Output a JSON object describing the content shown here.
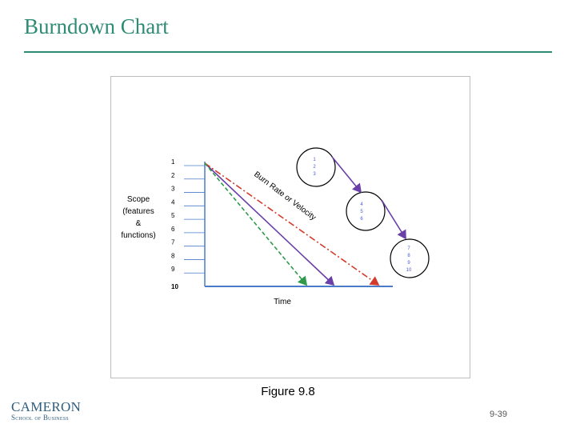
{
  "slide": {
    "title": "Burndown Chart",
    "caption": "Figure 9.8",
    "page_number": "9-39"
  },
  "logo": {
    "main": "CAMERON",
    "sub": "School of Business"
  },
  "chart_data": {
    "type": "line",
    "ylabel_lines": [
      "Scope",
      "(features",
      "&",
      "functions)"
    ],
    "xlabel": "Time",
    "y_ticks": [
      "1",
      "2",
      "3",
      "4",
      "5",
      "6",
      "7",
      "8",
      "9",
      "10"
    ],
    "annotation": "Burn Rate or Velocity",
    "colors": {
      "axis": "#4a7bc8",
      "purple": "#6a3fa8",
      "red": "#d23b2b",
      "green": "#2e9a4a"
    },
    "burndown_lines": [
      {
        "style": "solid",
        "color": "purple"
      },
      {
        "style": "dash-dot",
        "color": "red"
      },
      {
        "style": "dashed",
        "color": "green"
      }
    ],
    "circles": [
      {
        "items": [
          "1",
          "2",
          "3"
        ]
      },
      {
        "items": [
          "4",
          "5",
          "6"
        ]
      },
      {
        "items": [
          "7",
          "8",
          "9",
          "10"
        ]
      }
    ]
  }
}
